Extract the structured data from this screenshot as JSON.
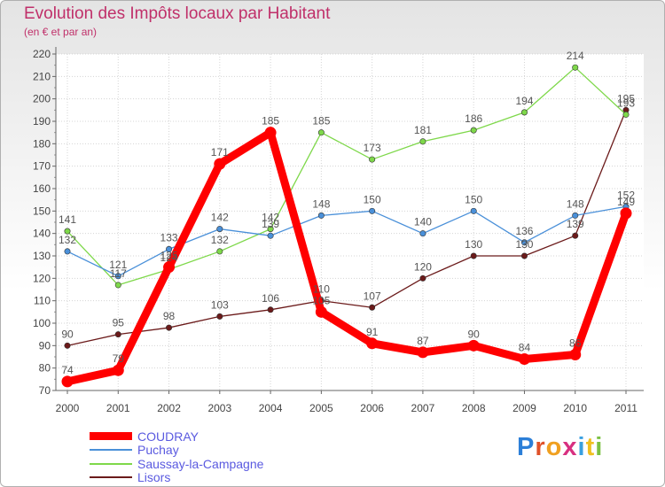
{
  "chart_data": {
    "type": "line",
    "title": "Evolution des Impôts locaux par Habitant",
    "subtitle": "(en € et par an)",
    "xlabel": "",
    "ylabel": "",
    "x": [
      "2000",
      "2001",
      "2002",
      "2003",
      "2004",
      "2005",
      "2006",
      "2007",
      "2008",
      "2009",
      "2010",
      "2011"
    ],
    "ylim": [
      70,
      220
    ],
    "yticks": [
      70,
      80,
      90,
      100,
      110,
      120,
      130,
      140,
      150,
      160,
      170,
      180,
      190,
      200,
      210,
      220
    ],
    "grid": true,
    "legend_position": "bottom-left",
    "series": [
      {
        "name": "COUDRAY",
        "color": "#ff0000",
        "values": [
          74,
          79,
          125,
          171,
          185,
          105,
          91,
          87,
          90,
          84,
          86,
          149
        ]
      },
      {
        "name": "Puchay",
        "color": "#4a90d9",
        "values": [
          132,
          121,
          133,
          142,
          139,
          148,
          150,
          140,
          150,
          136,
          148,
          152
        ]
      },
      {
        "name": "Saussay-la-Campagne",
        "color": "#7ed84a",
        "values": [
          141,
          117,
          124,
          132,
          142,
          185,
          173,
          181,
          186,
          194,
          214,
          193
        ]
      },
      {
        "name": "Lisors",
        "color": "#6b1a1a",
        "values": [
          90,
          95,
          98,
          103,
          106,
          110,
          107,
          120,
          130,
          130,
          139,
          195
        ]
      }
    ]
  },
  "logo": {
    "letters": [
      "P",
      "r",
      "o",
      "x",
      "i",
      "t",
      "i"
    ]
  }
}
